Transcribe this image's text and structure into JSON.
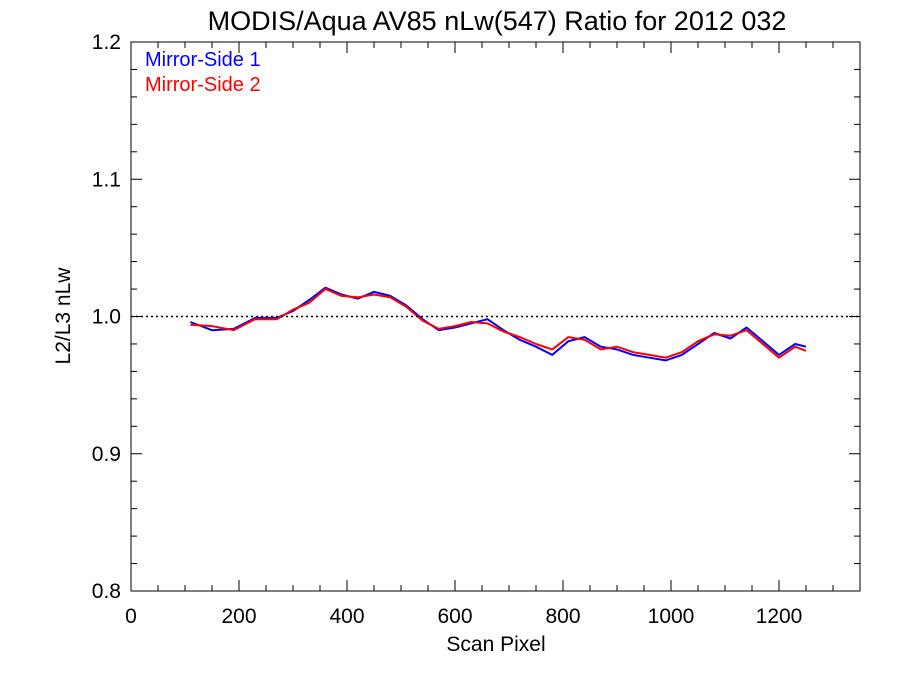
{
  "chart_data": {
    "type": "line",
    "title": "MODIS/Aqua AV85 nLw(547) Ratio for 2012 032",
    "xlabel": "Scan Pixel",
    "ylabel": "L2/L3 nLw",
    "xlim": [
      0,
      1350
    ],
    "ylim": [
      0.8,
      1.2
    ],
    "xticks": [
      0,
      200,
      400,
      600,
      800,
      1000,
      1200
    ],
    "yticks": [
      0.8,
      0.9,
      1.0,
      1.1,
      1.2
    ],
    "xtick_labels": [
      "0",
      "200",
      "400",
      "600",
      "800",
      "1000",
      "1200"
    ],
    "ytick_labels": [
      "0.8",
      "0.9",
      "1.0",
      "1.1",
      "1.2"
    ],
    "reference_line": {
      "y": 1.0,
      "style": "dotted"
    },
    "grid": false,
    "legend_position": "top-left",
    "x": [
      110,
      150,
      190,
      230,
      270,
      300,
      330,
      360,
      390,
      420,
      450,
      480,
      510,
      540,
      570,
      600,
      630,
      660,
      690,
      720,
      750,
      780,
      810,
      840,
      870,
      900,
      930,
      960,
      990,
      1020,
      1050,
      1080,
      1110,
      1140,
      1170,
      1200,
      1230,
      1250
    ],
    "series": [
      {
        "name": "Mirror-Side 1",
        "color": "#0000ff",
        "values": [
          0.996,
          0.99,
          0.991,
          0.999,
          0.999,
          1.004,
          1.012,
          1.021,
          1.016,
          1.013,
          1.018,
          1.015,
          1.008,
          0.998,
          0.99,
          0.992,
          0.995,
          0.998,
          0.99,
          0.983,
          0.978,
          0.972,
          0.982,
          0.985,
          0.978,
          0.976,
          0.972,
          0.97,
          0.968,
          0.972,
          0.98,
          0.988,
          0.984,
          0.992,
          0.982,
          0.972,
          0.98,
          0.978
        ]
      },
      {
        "name": "Mirror-Side 2",
        "color": "#ff0000",
        "values": [
          0.994,
          0.993,
          0.99,
          0.998,
          0.998,
          1.005,
          1.01,
          1.02,
          1.015,
          1.014,
          1.016,
          1.014,
          1.007,
          0.997,
          0.991,
          0.993,
          0.996,
          0.995,
          0.989,
          0.985,
          0.98,
          0.976,
          0.985,
          0.983,
          0.976,
          0.978,
          0.974,
          0.972,
          0.97,
          0.974,
          0.982,
          0.987,
          0.986,
          0.99,
          0.98,
          0.97,
          0.978,
          0.975
        ]
      }
    ]
  }
}
